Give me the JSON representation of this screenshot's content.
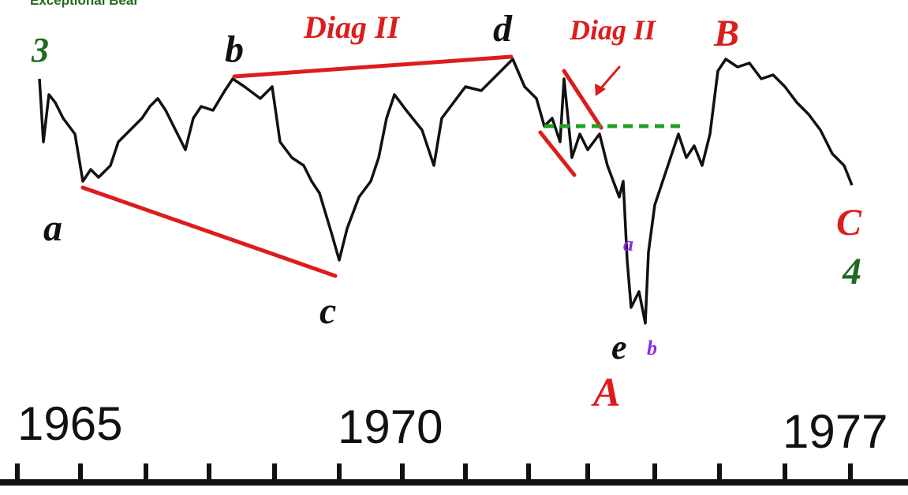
{
  "header": {
    "title": "Exceptional Bear"
  },
  "wave_labels": {
    "degree_start": "3",
    "a": "a",
    "b": "b",
    "c": "c",
    "d": "d",
    "e": "e",
    "diagonal_1": "Diag II",
    "diagonal_2": "Diag II",
    "A": "A",
    "B": "B",
    "C": "C",
    "degree_end": "4",
    "sub_a": "a",
    "sub_b": "b"
  },
  "axis": {
    "years": [
      "1965",
      "1970",
      "1977"
    ]
  }
}
